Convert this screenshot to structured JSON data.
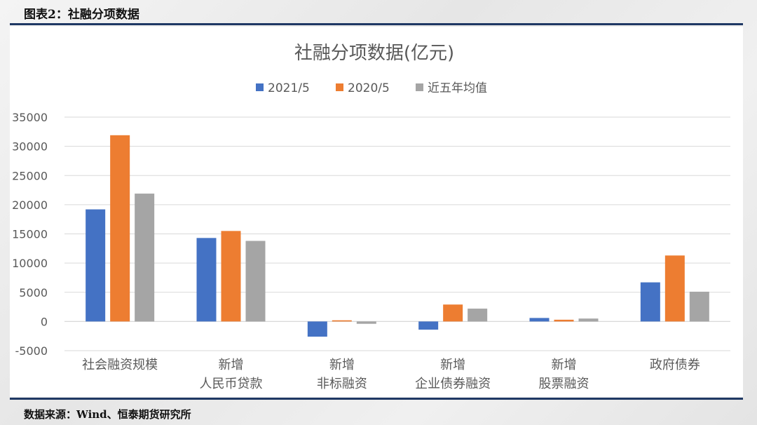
{
  "header": {
    "figure_label": "图表2：社融分项数据"
  },
  "footer": {
    "source": "数据来源：Wind、恒泰期货研究所"
  },
  "chart_data": {
    "type": "bar",
    "title": "社融分项数据(亿元)",
    "categories": [
      [
        "社会融资规模"
      ],
      [
        "新增",
        "人民币贷款"
      ],
      [
        "新增",
        "非标融资"
      ],
      [
        "新增",
        "企业债券融资"
      ],
      [
        "新增",
        "股票融资"
      ],
      [
        "政府债券"
      ]
    ],
    "series": [
      {
        "name": "2021/5",
        "color": "#4472c4",
        "values": [
          19200,
          14300,
          -2600,
          -1400,
          600,
          6700
        ]
      },
      {
        "name": "2020/5",
        "color": "#ed7d31",
        "values": [
          31900,
          15500,
          200,
          2900,
          300,
          11300
        ]
      },
      {
        "name": "近五年均值",
        "color": "#a5a5a5",
        "values": [
          21900,
          13800,
          -400,
          2200,
          500,
          5100
        ]
      }
    ],
    "ylim": [
      -5000,
      35000
    ],
    "yticks": [
      "35000",
      "30000",
      "25000",
      "20000",
      "15000",
      "10000",
      "5000",
      "0",
      "-5000"
    ],
    "ytick_values": [
      35000,
      30000,
      25000,
      20000,
      15000,
      10000,
      5000,
      0,
      -5000
    ],
    "grid": true,
    "legend_position": "top"
  }
}
